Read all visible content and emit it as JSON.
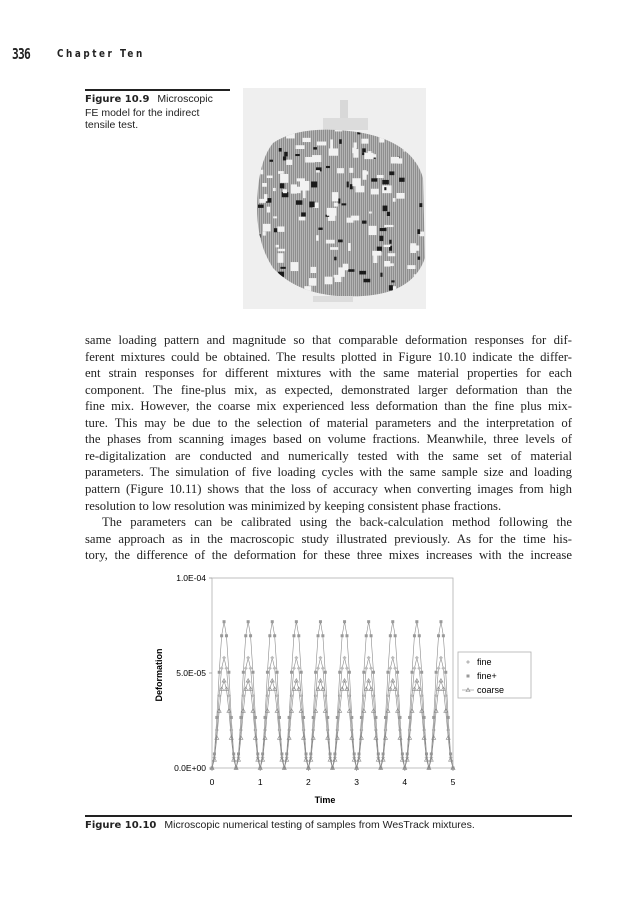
{
  "header": {
    "page_number": "336",
    "running_head": "Chapter Ten"
  },
  "figure_10_9": {
    "label": "Figure 10.9",
    "caption_lines": [
      "Microscopic",
      "FE model for the indirect",
      "tensile test."
    ]
  },
  "body": {
    "lines": [
      "same loading pattern and magnitude so that comparable deformation responses for dif-",
      "ferent mixtures could be obtained. The results plotted in Figure 10.10 indicate the differ-",
      "ent strain responses for different mixtures with the same material properties for each",
      "component. The fine-plus mix, as expected, demonstrated larger deformation than the",
      "fine mix. However, the coarse mix experienced less deformation than the fine plus mix-",
      "ture. This may be due to the selection of material parameters and the interpretation of",
      "the phases from scanning images based on volume fractions. Meanwhile, three levels of",
      "re-digitalization are conducted and numerically tested with the same set of material",
      "parameters. The simulation of five loading cycles with the same sample size and loading",
      "pattern (Figure 10.11) shows that the loss of accuracy when converting images from high",
      "resolution to low resolution was minimized by keeping consistent phase fractions.",
      "The parameters can be calibrated using the back-calculation method following the",
      "same approach as in the macroscopic study illustrated previously. As for the time his-",
      "tory, the difference of the deformation for these three mixes increases with the increase"
    ]
  },
  "figure_10_10": {
    "label": "Figure 10.10",
    "caption": "Microscopic numerical testing of samples from WesTrack mixtures."
  },
  "chart_data": {
    "type": "line",
    "xlabel": "Time",
    "ylabel": "Deformation",
    "xlim": [
      0,
      5
    ],
    "ylim": [
      0,
      0.0001
    ],
    "x_ticks": [
      "0",
      "1",
      "2",
      "3",
      "4",
      "5"
    ],
    "y_ticks": [
      "0.0E+00",
      "5.0E-05",
      "1.0E-04"
    ],
    "grid": false,
    "legend_position": "right",
    "x_step": 0.05,
    "series": [
      {
        "name": "fine",
        "marker": "diamond",
        "cycle_values": [
          0,
          5.5e-06,
          2e-05,
          3.8e-05,
          5.25e-05,
          5.8e-05,
          5.25e-05,
          3.8e-05,
          2e-05,
          5.5e-06
        ]
      },
      {
        "name": "fine+",
        "marker": "square",
        "cycle_values": [
          0,
          7.4e-06,
          2.66e-05,
          5.04e-05,
          6.96e-05,
          7.7e-05,
          6.96e-05,
          5.04e-05,
          2.66e-05,
          7.4e-06
        ]
      },
      {
        "name": "coarse",
        "marker": "triangle",
        "cycle_values": [
          0,
          4.4e-06,
          1.59e-05,
          3.01e-05,
          4.16e-05,
          4.6e-05,
          4.16e-05,
          3.01e-05,
          1.59e-05,
          4.4e-06
        ]
      }
    ],
    "cycles": 10,
    "colors": {
      "line": "#8a8a8a",
      "axis": "#999999"
    }
  }
}
